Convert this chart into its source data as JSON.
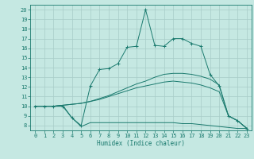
{
  "xlabel": "Humidex (Indice chaleur)",
  "xlim": [
    -0.5,
    23.5
  ],
  "ylim": [
    7.5,
    20.5
  ],
  "xticks": [
    0,
    1,
    2,
    3,
    4,
    5,
    6,
    7,
    8,
    9,
    10,
    11,
    12,
    13,
    14,
    15,
    16,
    17,
    18,
    19,
    20,
    21,
    22,
    23
  ],
  "yticks": [
    8,
    9,
    10,
    11,
    12,
    13,
    14,
    15,
    16,
    17,
    18,
    19,
    20
  ],
  "bg_color": "#c5e8e2",
  "line_color": "#1a7a6e",
  "grid_color": "#a8ccc8",
  "line1_marked": {
    "x": [
      0,
      1,
      2,
      3,
      4,
      5,
      6,
      7,
      8,
      9,
      10,
      11,
      12,
      13,
      14,
      15,
      16,
      17,
      18,
      19,
      20,
      21,
      22,
      23
    ],
    "y": [
      10,
      10,
      10,
      10,
      8.8,
      8.0,
      12.1,
      13.8,
      13.9,
      14.4,
      16.1,
      16.2,
      20.0,
      16.3,
      16.2,
      17.0,
      17.0,
      16.5,
      16.2,
      13.3,
      12.1,
      9.0,
      8.5,
      7.7
    ]
  },
  "line2": {
    "x": [
      0,
      1,
      2,
      3,
      4,
      5,
      6,
      7,
      8,
      9,
      10,
      11,
      12,
      13,
      14,
      15,
      16,
      17,
      18,
      19,
      20,
      21,
      22,
      23
    ],
    "y": [
      10,
      10,
      10,
      10.1,
      10.2,
      10.3,
      10.5,
      10.8,
      11.1,
      11.5,
      11.9,
      12.3,
      12.6,
      13.0,
      13.3,
      13.4,
      13.4,
      13.3,
      13.1,
      12.8,
      12.2,
      9.0,
      8.5,
      7.7
    ]
  },
  "line3": {
    "x": [
      0,
      1,
      2,
      3,
      4,
      5,
      6,
      7,
      8,
      9,
      10,
      11,
      12,
      13,
      14,
      15,
      16,
      17,
      18,
      19,
      20,
      21,
      22,
      23
    ],
    "y": [
      10,
      10,
      10,
      10.1,
      10.2,
      10.3,
      10.5,
      10.7,
      11.0,
      11.3,
      11.6,
      11.9,
      12.1,
      12.3,
      12.5,
      12.6,
      12.5,
      12.4,
      12.2,
      11.9,
      11.5,
      9.0,
      8.5,
      7.7
    ]
  },
  "line4": {
    "x": [
      0,
      1,
      2,
      3,
      4,
      5,
      6,
      7,
      8,
      9,
      10,
      11,
      12,
      13,
      14,
      15,
      16,
      17,
      18,
      19,
      20,
      21,
      22,
      23
    ],
    "y": [
      10,
      10,
      10,
      10.1,
      8.8,
      7.9,
      8.3,
      8.3,
      8.3,
      8.3,
      8.3,
      8.3,
      8.3,
      8.3,
      8.3,
      8.3,
      8.2,
      8.2,
      8.1,
      8.0,
      7.9,
      7.8,
      7.7,
      7.7
    ]
  }
}
